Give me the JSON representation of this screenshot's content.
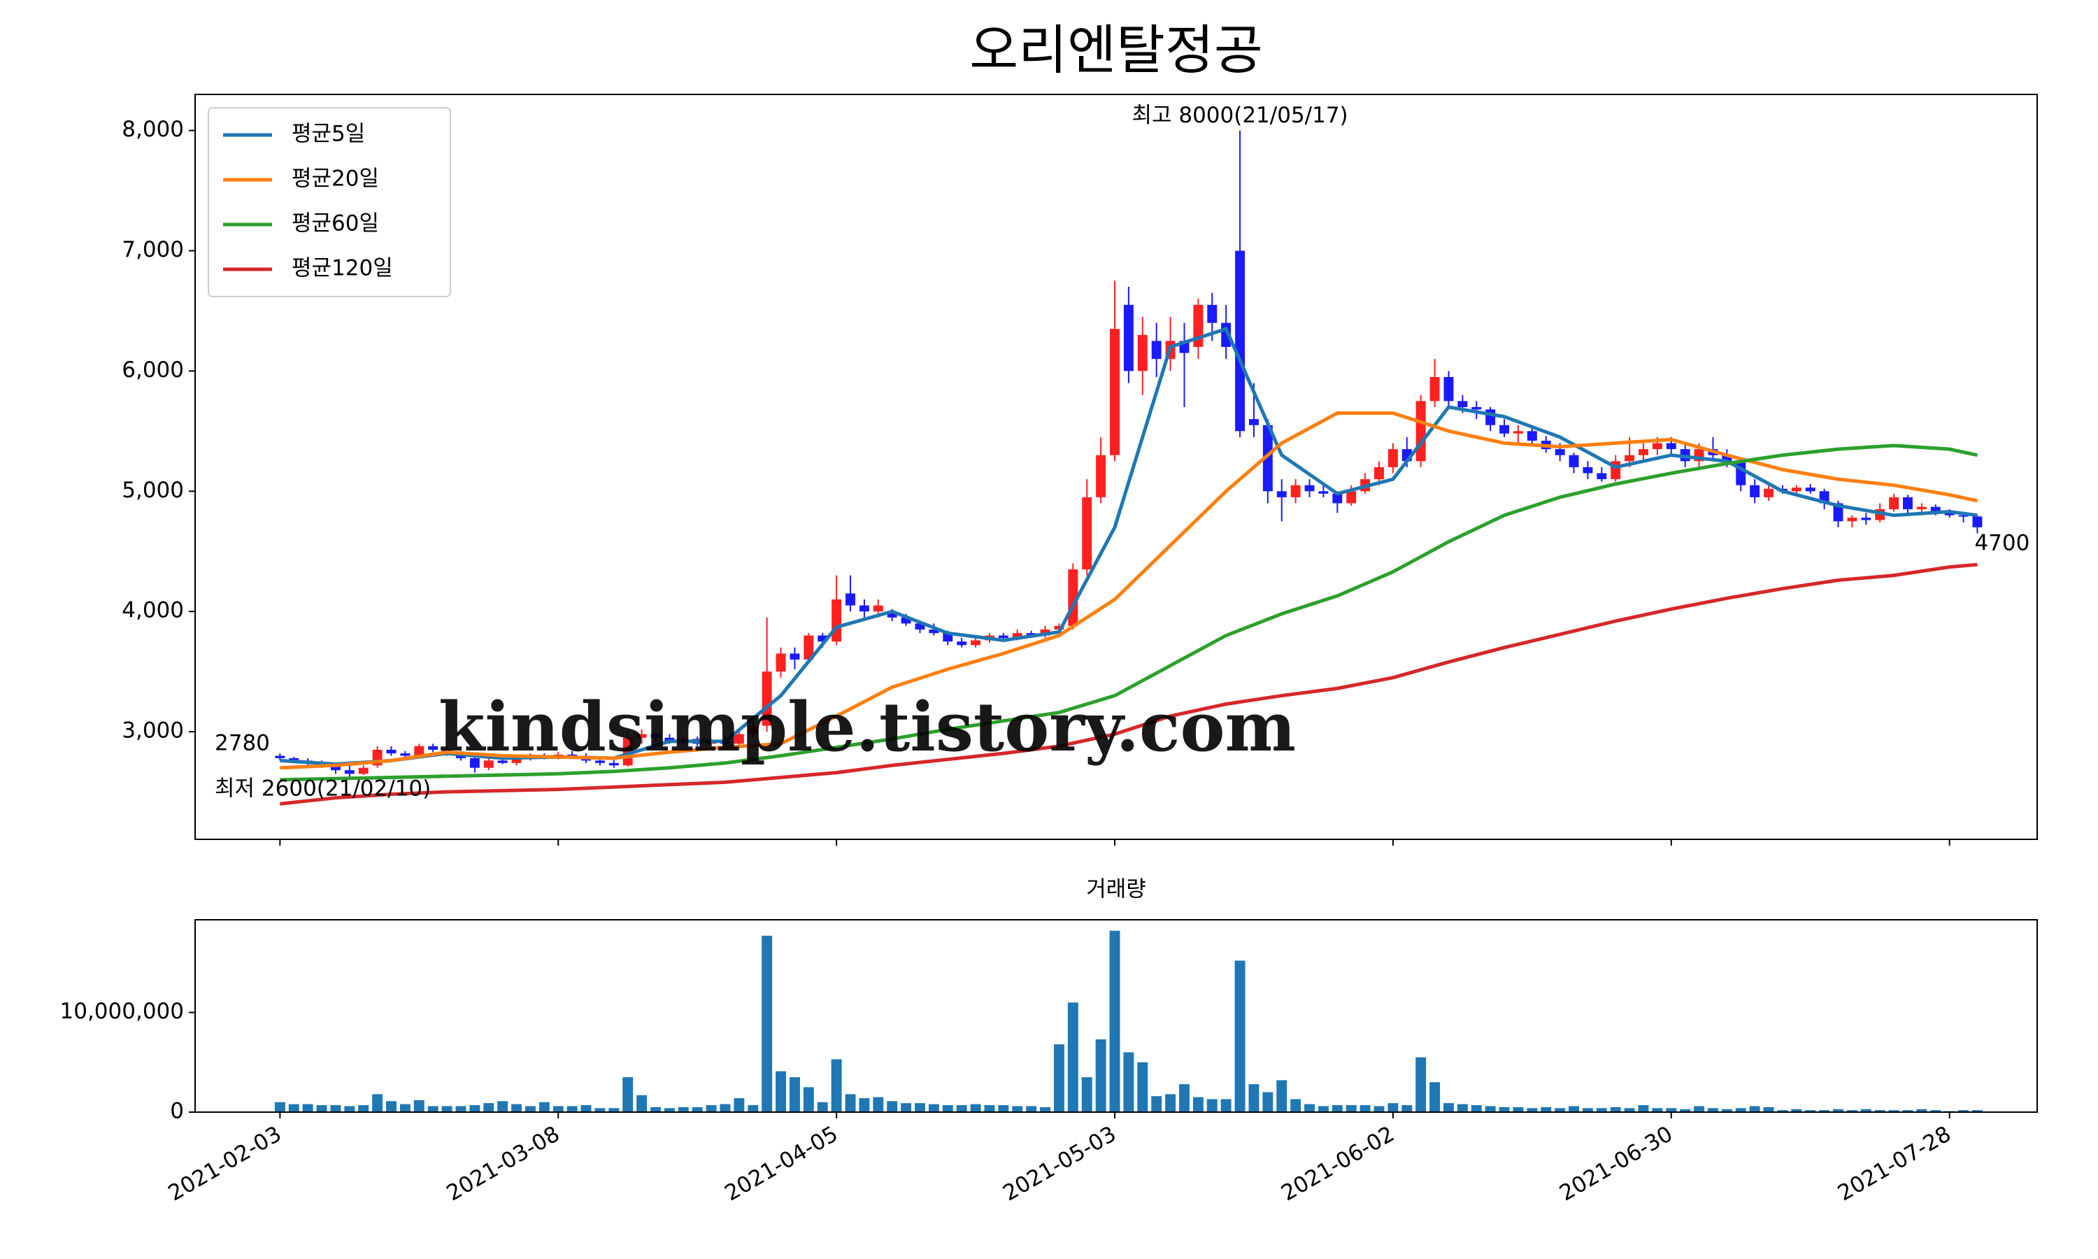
{
  "chart_data": [
    {
      "type": "candlestick",
      "title": "오리엔탈정공",
      "watermark": "kindsimple.tistory.com",
      "up_color": "#ff2020",
      "down_color": "#1a1aff",
      "legend": "upper left",
      "xlim": [
        -6.1,
        126.3
      ],
      "xticks": [
        0,
        20,
        40,
        60,
        80,
        100,
        120
      ],
      "ylim": [
        2105,
        8300
      ],
      "yticks": [
        {
          "value": 3000,
          "label": "3,000"
        },
        {
          "value": 4000,
          "label": "4,000"
        },
        {
          "value": 5000,
          "label": "5,000"
        },
        {
          "value": 6000,
          "label": "6,000"
        },
        {
          "value": 7000,
          "label": "7,000"
        },
        {
          "value": 8000,
          "label": "8,000"
        }
      ],
      "high_label": {
        "text": "최고 8000(21/05/17)",
        "color": "#ff0000"
      },
      "low_label": {
        "text": "최저 2600(21/02/10)",
        "color": "#0000ff"
      },
      "open": [
        2800,
        2780,
        2760,
        2740,
        2720,
        2680,
        2650,
        2720,
        2850,
        2820,
        2800,
        2880,
        2850,
        2820,
        2780,
        2700,
        2760,
        2740,
        2780,
        2800,
        2790,
        2810,
        2800,
        2760,
        2740,
        2720,
        2950,
        2980,
        2950,
        2920,
        2940,
        2900,
        2920,
        2900,
        2980,
        3050,
        3500,
        3650,
        3600,
        3800,
        3750,
        4150,
        4050,
        4000,
        4000,
        3950,
        3900,
        3850,
        3820,
        3750,
        3720,
        3760,
        3800,
        3780,
        3820,
        3800,
        3850,
        3880,
        4350,
        4950,
        5300,
        6550,
        6000,
        6250,
        6100,
        6250,
        6200,
        6550,
        6400,
        7000,
        5600,
        5550,
        5000,
        4950,
        5050,
        5000,
        4980,
        4900,
        5000,
        5100,
        5200,
        5350,
        5250,
        5750,
        5950,
        5750,
        5700,
        5680,
        5550,
        5480,
        5500,
        5420,
        5350,
        5300,
        5200,
        5150,
        5100,
        5250,
        5300,
        5350,
        5400,
        5350,
        5250,
        5350,
        5300,
        5250,
        5050,
        4950,
        5020,
        5000,
        5030,
        5000,
        4900,
        4750,
        4780,
        4760,
        4850,
        4950,
        4850,
        4870,
        4820,
        4800,
        4790
      ],
      "high": [
        2820,
        2790,
        2780,
        2760,
        2740,
        2720,
        2720,
        2880,
        2880,
        2840,
        2900,
        2900,
        2880,
        2840,
        2800,
        2780,
        2800,
        2800,
        2820,
        2820,
        2830,
        2840,
        2820,
        2780,
        2780,
        3000,
        3020,
        3000,
        2980,
        2960,
        2960,
        2940,
        2960,
        3000,
        3100,
        3950,
        3700,
        3700,
        3820,
        3820,
        4300,
        4300,
        4100,
        4100,
        4020,
        3980,
        3920,
        3900,
        3840,
        3780,
        3780,
        3820,
        3820,
        3850,
        3840,
        3880,
        3900,
        4400,
        5100,
        5450,
        6750,
        6700,
        6450,
        6400,
        6450,
        6400,
        6600,
        6650,
        6550,
        8000,
        5900,
        5600,
        5100,
        5100,
        5100,
        5050,
        5000,
        5050,
        5150,
        5250,
        5400,
        5450,
        5800,
        6100,
        6000,
        5800,
        5750,
        5700,
        5600,
        5550,
        5550,
        5460,
        5400,
        5320,
        5250,
        5200,
        5300,
        5450,
        5400,
        5450,
        5450,
        5400,
        5400,
        5450,
        5350,
        5280,
        5100,
        5050,
        5050,
        5050,
        5060,
        5020,
        4920,
        4800,
        4820,
        4900,
        4980,
        4970,
        4900,
        4890,
        4850,
        4830,
        4800
      ],
      "low": [
        2760,
        2740,
        2720,
        2700,
        2650,
        2600,
        2640,
        2700,
        2800,
        2780,
        2790,
        2830,
        2800,
        2760,
        2660,
        2680,
        2730,
        2720,
        2760,
        2770,
        2770,
        2780,
        2740,
        2720,
        2700,
        2710,
        2900,
        2920,
        2900,
        2890,
        2880,
        2860,
        2880,
        2880,
        2950,
        3000,
        3450,
        3520,
        3580,
        3700,
        3720,
        4000,
        3950,
        3950,
        3920,
        3880,
        3820,
        3800,
        3720,
        3700,
        3700,
        3740,
        3760,
        3760,
        3780,
        3780,
        3820,
        3850,
        4300,
        4900,
        5250,
        5900,
        5800,
        5950,
        6000,
        5700,
        6100,
        6250,
        6100,
        5450,
        5450,
        4900,
        4750,
        4900,
        4950,
        4950,
        4820,
        4880,
        4980,
        5050,
        5150,
        5200,
        5200,
        5700,
        5700,
        5650,
        5600,
        5500,
        5450,
        5400,
        5380,
        5320,
        5250,
        5150,
        5100,
        5080,
        5080,
        5200,
        5250,
        5300,
        5300,
        5200,
        5200,
        5250,
        5200,
        5000,
        4900,
        4920,
        4980,
        4960,
        4980,
        4850,
        4700,
        4700,
        4720,
        4740,
        4830,
        4820,
        4800,
        4800,
        4780,
        4740,
        4650
      ],
      "close": [
        2780,
        2760,
        2740,
        2720,
        2680,
        2650,
        2700,
        2850,
        2820,
        2800,
        2880,
        2850,
        2820,
        2780,
        2700,
        2760,
        2740,
        2780,
        2800,
        2790,
        2810,
        2800,
        2760,
        2740,
        2720,
        2950,
        2980,
        2950,
        2920,
        2940,
        2900,
        2920,
        2900,
        2980,
        3050,
        3500,
        3650,
        3600,
        3800,
        3750,
        4100,
        4050,
        4000,
        4050,
        3950,
        3900,
        3850,
        3820,
        3750,
        3720,
        3760,
        3800,
        3780,
        3820,
        3800,
        3850,
        3880,
        4350,
        4950,
        5300,
        6350,
        6000,
        6300,
        6100,
        6250,
        6150,
        6550,
        6400,
        6200,
        5500,
        5550,
        5000,
        4950,
        5050,
        5000,
        4980,
        4900,
        5000,
        5100,
        5200,
        5350,
        5250,
        5750,
        5950,
        5750,
        5700,
        5680,
        5550,
        5480,
        5500,
        5420,
        5350,
        5300,
        5200,
        5150,
        5100,
        5250,
        5300,
        5350,
        5400,
        5350,
        5250,
        5350,
        5300,
        5250,
        5050,
        4950,
        5020,
        5000,
        5030,
        5000,
        4900,
        4750,
        4780,
        4760,
        4850,
        4950,
        4850,
        4870,
        4820,
        4800,
        4790,
        4700
      ],
      "series": [
        {
          "name": "평균5일",
          "color": "#1f77b4",
          "x": [
            0,
            4,
            8,
            12,
            16,
            20,
            24,
            28,
            32,
            36,
            40,
            44,
            48,
            52,
            56,
            60,
            64,
            68,
            72,
            76,
            80,
            84,
            88,
            92,
            96,
            100,
            104,
            108,
            112,
            116,
            120,
            122
          ],
          "values": [
            2760,
            2730,
            2760,
            2820,
            2780,
            2790,
            2780,
            2920,
            2920,
            3300,
            3870,
            4000,
            3820,
            3760,
            3830,
            4700,
            6200,
            6350,
            5300,
            4980,
            5100,
            5700,
            5620,
            5450,
            5200,
            5300,
            5250,
            5000,
            4880,
            4800,
            4830,
            4800
          ]
        },
        {
          "name": "평균20일",
          "color": "#ff7f0e",
          "x": [
            0,
            4,
            8,
            12,
            16,
            20,
            24,
            28,
            32,
            36,
            40,
            44,
            48,
            52,
            56,
            60,
            64,
            68,
            72,
            76,
            80,
            84,
            88,
            92,
            96,
            100,
            104,
            108,
            112,
            116,
            120,
            122
          ],
          "values": [
            2700,
            2720,
            2760,
            2830,
            2800,
            2790,
            2780,
            2830,
            2870,
            2900,
            3130,
            3370,
            3520,
            3650,
            3800,
            4100,
            4550,
            5000,
            5400,
            5650,
            5650,
            5500,
            5400,
            5370,
            5400,
            5430,
            5300,
            5180,
            5100,
            5050,
            4970,
            4920
          ]
        },
        {
          "name": "평균60일",
          "color": "#2ca02c",
          "x": [
            0,
            4,
            8,
            12,
            16,
            20,
            24,
            28,
            32,
            36,
            40,
            44,
            48,
            52,
            56,
            60,
            64,
            68,
            72,
            76,
            80,
            84,
            88,
            92,
            96,
            100,
            104,
            108,
            112,
            116,
            120,
            122
          ],
          "values": [
            2600,
            2610,
            2620,
            2630,
            2640,
            2650,
            2670,
            2700,
            2740,
            2800,
            2870,
            2940,
            3020,
            3090,
            3160,
            3300,
            3550,
            3800,
            3980,
            4130,
            4330,
            4580,
            4800,
            4950,
            5060,
            5150,
            5230,
            5300,
            5350,
            5380,
            5350,
            5300
          ]
        },
        {
          "name": "평균120일",
          "color": "#d62728",
          "x": [
            0,
            4,
            8,
            12,
            16,
            20,
            24,
            28,
            32,
            36,
            40,
            44,
            48,
            52,
            56,
            60,
            64,
            68,
            72,
            76,
            80,
            84,
            88,
            92,
            96,
            100,
            104,
            108,
            112,
            116,
            120,
            122
          ],
          "values": [
            2400,
            2450,
            2480,
            2500,
            2510,
            2520,
            2540,
            2560,
            2580,
            2620,
            2660,
            2720,
            2770,
            2820,
            2880,
            2980,
            3130,
            3230,
            3300,
            3360,
            3450,
            3580,
            3700,
            3810,
            3920,
            4020,
            4110,
            4190,
            4260,
            4300,
            4370,
            4390
          ]
        }
      ]
    },
    {
      "type": "bar",
      "title": "거래량",
      "color": "#1f77b4",
      "xlim": [
        -6.1,
        126.3
      ],
      "xticks": [
        {
          "value": 0,
          "label": "2021-02-03"
        },
        {
          "value": 20,
          "label": "2021-03-08"
        },
        {
          "value": 40,
          "label": "2021-04-05"
        },
        {
          "value": 60,
          "label": "2021-05-03"
        },
        {
          "value": 80,
          "label": "2021-06-02"
        },
        {
          "value": 100,
          "label": "2021-06-30"
        },
        {
          "value": 120,
          "label": "2021-07-28"
        }
      ],
      "ylim": [
        0,
        19300000
      ],
      "yticks": [
        0,
        {
          "value": 10000000,
          "label": "10,000,000"
        }
      ],
      "values": [
        1000000,
        800000,
        800000,
        700000,
        700000,
        600000,
        700000,
        1800000,
        1100000,
        800000,
        1200000,
        600000,
        600000,
        600000,
        700000,
        900000,
        1100000,
        800000,
        600000,
        1000000,
        600000,
        600000,
        700000,
        400000,
        400000,
        3500000,
        1700000,
        500000,
        400000,
        500000,
        500000,
        700000,
        800000,
        1400000,
        700000,
        17700000,
        4100000,
        3500000,
        2500000,
        1000000,
        5300000,
        1800000,
        1400000,
        1500000,
        1100000,
        900000,
        900000,
        800000,
        700000,
        700000,
        800000,
        700000,
        700000,
        600000,
        600000,
        500000,
        6800000,
        11000000,
        3500000,
        7300000,
        18200000,
        6000000,
        5000000,
        1600000,
        1800000,
        2800000,
        1500000,
        1300000,
        1300000,
        15200000,
        2800000,
        2000000,
        3200000,
        1300000,
        800000,
        600000,
        700000,
        700000,
        700000,
        600000,
        900000,
        700000,
        5500000,
        3000000,
        900000,
        800000,
        700000,
        600000,
        500000,
        500000,
        400000,
        500000,
        400000,
        600000,
        400000,
        400000,
        500000,
        400000,
        700000,
        400000,
        400000,
        300000,
        600000,
        400000,
        300000,
        400000,
        600000,
        500000,
        200000,
        300000,
        200000,
        200000,
        300000,
        200000,
        300000,
        200000,
        200000,
        200000,
        300000,
        200000,
        100000,
        200000,
        200000
      ]
    }
  ]
}
